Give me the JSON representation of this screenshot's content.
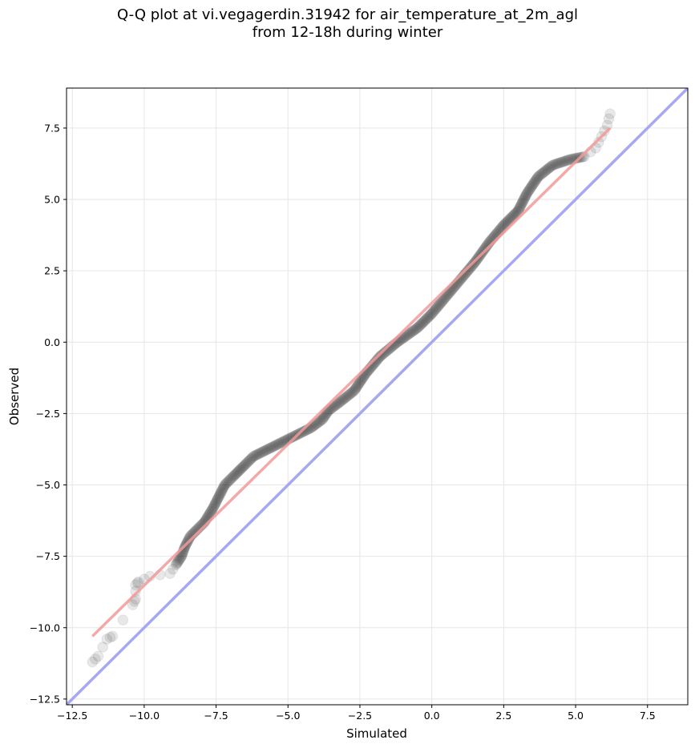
{
  "title": {
    "line1": "Q-Q plot at vi.vegagerdin.31942 for air_temperature_at_2m_agl",
    "line2": "from 12-18h during winter"
  },
  "chart_data": {
    "type": "scatter",
    "xlabel": "Simulated",
    "ylabel": "Observed",
    "xlim": [
      -12.7,
      8.9
    ],
    "ylim": [
      -12.7,
      8.9
    ],
    "xticks": [
      -12.5,
      -10.0,
      -7.5,
      -5.0,
      -2.5,
      0.0,
      2.5,
      5.0,
      7.5
    ],
    "yticks": [
      -12.5,
      -10.0,
      -7.5,
      -5.0,
      -2.5,
      0.0,
      2.5,
      5.0,
      7.5
    ],
    "xtick_labels": [
      "−12.5",
      "−10.0",
      "−7.5",
      "−5.0",
      "−2.5",
      "0.0",
      "2.5",
      "5.0",
      "7.5"
    ],
    "ytick_labels": [
      "−12.5",
      "−10.0",
      "−7.5",
      "−5.0",
      "−2.5",
      "0.0",
      "2.5",
      "5.0",
      "7.5"
    ],
    "grid": true,
    "quantile_curve": [
      [
        -11.8,
        -11.2
      ],
      [
        -11.6,
        -11.0
      ],
      [
        -11.3,
        -10.4
      ],
      [
        -11.1,
        -10.3
      ],
      [
        -10.4,
        -9.2
      ],
      [
        -10.3,
        -9.0
      ],
      [
        -10.3,
        -8.5
      ],
      [
        -10.2,
        -8.4
      ],
      [
        -9.8,
        -8.2
      ],
      [
        -9.1,
        -8.1
      ],
      [
        -8.9,
        -7.8
      ],
      [
        -8.7,
        -7.5
      ],
      [
        -8.6,
        -7.2
      ],
      [
        -8.4,
        -6.8
      ],
      [
        -8.2,
        -6.6
      ],
      [
        -7.9,
        -6.3
      ],
      [
        -7.6,
        -5.8
      ],
      [
        -7.4,
        -5.4
      ],
      [
        -7.2,
        -5.0
      ],
      [
        -6.9,
        -4.7
      ],
      [
        -6.5,
        -4.3
      ],
      [
        -6.2,
        -4.0
      ],
      [
        -5.8,
        -3.8
      ],
      [
        -5.2,
        -3.5
      ],
      [
        -4.6,
        -3.2
      ],
      [
        -4.2,
        -3.0
      ],
      [
        -3.8,
        -2.7
      ],
      [
        -3.6,
        -2.4
      ],
      [
        -3.2,
        -2.1
      ],
      [
        -2.7,
        -1.7
      ],
      [
        -2.3,
        -1.1
      ],
      [
        -1.8,
        -0.5
      ],
      [
        -1.2,
        0.0
      ],
      [
        -0.5,
        0.5
      ],
      [
        0.0,
        1.0
      ],
      [
        0.5,
        1.6
      ],
      [
        1.0,
        2.2
      ],
      [
        1.5,
        2.8
      ],
      [
        2.0,
        3.5
      ],
      [
        2.5,
        4.1
      ],
      [
        3.0,
        4.6
      ],
      [
        3.3,
        5.2
      ],
      [
        3.7,
        5.8
      ],
      [
        4.2,
        6.2
      ],
      [
        4.8,
        6.4
      ],
      [
        5.3,
        6.5
      ],
      [
        5.7,
        6.8
      ],
      [
        5.9,
        7.2
      ],
      [
        6.1,
        7.6
      ],
      [
        6.2,
        8.0
      ]
    ],
    "fit_line": {
      "x": [
        -11.8,
        6.2
      ],
      "y": [
        -10.3,
        7.5
      ],
      "color": "#f29a9a"
    },
    "identity_line": {
      "x": [
        -12.7,
        8.9
      ],
      "y": [
        -12.7,
        8.9
      ],
      "color": "#a7a7f2"
    },
    "point_color": "#000000"
  }
}
